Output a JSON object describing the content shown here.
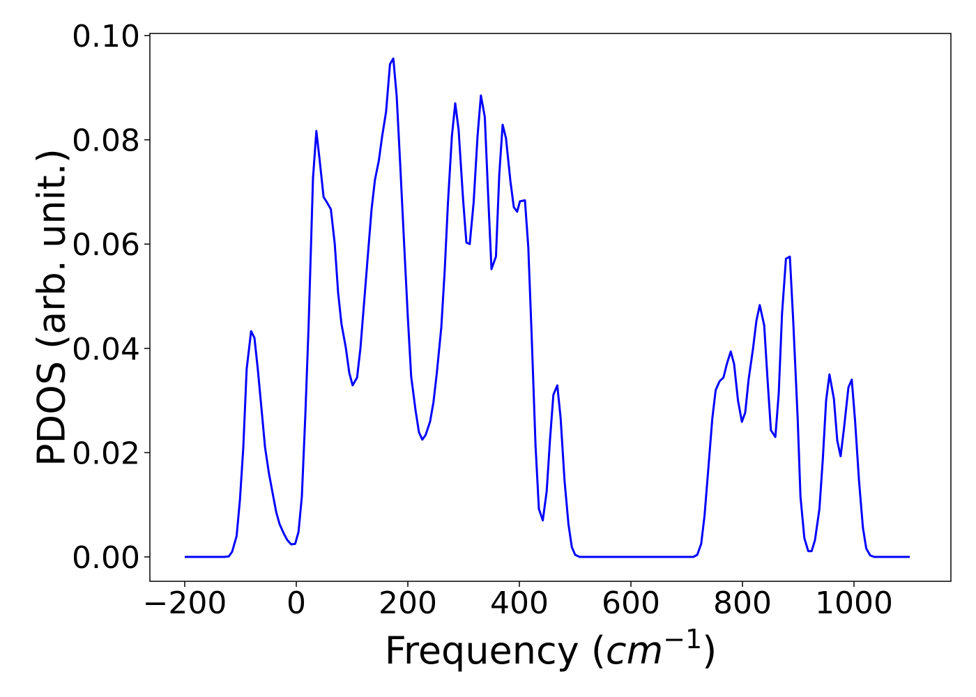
{
  "chart_data": {
    "type": "line",
    "ylabel": "PDOS (arb. unit.)",
    "xlabel_parts": [
      "Frequency (",
      "cm",
      "−1",
      ")"
    ],
    "x": [
      -200,
      -129,
      -121,
      -115,
      -107,
      -101,
      -95,
      -89,
      -81,
      -75,
      -69,
      -62,
      -56,
      -49,
      -42,
      -36,
      -30,
      -22,
      -16,
      -9,
      -2,
      4,
      10,
      16,
      22,
      30,
      36,
      42,
      49,
      55,
      62,
      69,
      75,
      81,
      89,
      95,
      101,
      109,
      115,
      121,
      128,
      135,
      141,
      148,
      154,
      161,
      168,
      174,
      180,
      186,
      194,
      200,
      206,
      214,
      220,
      226,
      232,
      240,
      246,
      252,
      260,
      266,
      272,
      279,
      285,
      291,
      299,
      305,
      311,
      318,
      325,
      331,
      338,
      344,
      350,
      358,
      364,
      370,
      376,
      384,
      390,
      396,
      401,
      410,
      416,
      422,
      429,
      435,
      442,
      449,
      455,
      461,
      468,
      474,
      481,
      488,
      494,
      500,
      508,
      712,
      719,
      726,
      732,
      739,
      746,
      752,
      759,
      766,
      772,
      779,
      785,
      792,
      799,
      805,
      811,
      819,
      825,
      831,
      839,
      845,
      851,
      859,
      865,
      871,
      878,
      885,
      891,
      899,
      904,
      911,
      918,
      924,
      930,
      938,
      944,
      950,
      956,
      964,
      970,
      976,
      982,
      990,
      996,
      1002,
      1009,
      1016,
      1022,
      1029,
      1036,
      1100
    ],
    "series": [
      {
        "name": "PDOS",
        "color": "#0000ff",
        "values": [
          0,
          0,
          0.0001,
          0.001,
          0.004,
          0.011,
          0.021,
          0.036,
          0.0433,
          0.042,
          0.036,
          0.028,
          0.021,
          0.016,
          0.012,
          0.0086,
          0.0063,
          0.0044,
          0.0032,
          0.0024,
          0.0025,
          0.0048,
          0.0116,
          0.0266,
          0.044,
          0.0727,
          0.0817,
          0.076,
          0.069,
          0.068,
          0.0667,
          0.06,
          0.0507,
          0.0447,
          0.04,
          0.0353,
          0.0329,
          0.0344,
          0.04,
          0.048,
          0.0574,
          0.0667,
          0.0723,
          0.076,
          0.0807,
          0.0854,
          0.0945,
          0.0956,
          0.0884,
          0.076,
          0.0587,
          0.046,
          0.0346,
          0.028,
          0.0239,
          0.0225,
          0.0234,
          0.026,
          0.0297,
          0.0353,
          0.044,
          0.0547,
          0.068,
          0.0807,
          0.087,
          0.082,
          0.0687,
          0.0603,
          0.06,
          0.068,
          0.0807,
          0.0885,
          0.0844,
          0.0694,
          0.0552,
          0.0576,
          0.0734,
          0.0829,
          0.0803,
          0.072,
          0.0671,
          0.0662,
          0.0682,
          0.0684,
          0.0594,
          0.0426,
          0.0213,
          0.0092,
          0.007,
          0.0126,
          0.0226,
          0.0311,
          0.0329,
          0.0266,
          0.0146,
          0.0063,
          0.0019,
          0.0004,
          0,
          0,
          0.0004,
          0.0025,
          0.0079,
          0.0172,
          0.0266,
          0.032,
          0.0337,
          0.0344,
          0.037,
          0.0394,
          0.037,
          0.03,
          0.0259,
          0.0277,
          0.034,
          0.04,
          0.0453,
          0.0483,
          0.0444,
          0.034,
          0.0243,
          0.023,
          0.0313,
          0.0467,
          0.0572,
          0.0576,
          0.0453,
          0.0266,
          0.0116,
          0.0036,
          0.0011,
          0.0011,
          0.0032,
          0.0092,
          0.0186,
          0.03,
          0.035,
          0.0303,
          0.0223,
          0.0193,
          0.0246,
          0.0325,
          0.034,
          0.026,
          0.0146,
          0.0056,
          0.0016,
          0.0003,
          0,
          0
        ]
      }
    ],
    "xlim": [
      -262.5,
      1173.75
    ],
    "ylim": [
      -0.00468,
      0.1004
    ],
    "xticks": [
      {
        "value": -200,
        "label": "−200"
      },
      0,
      200,
      400,
      600,
      800,
      1000
    ],
    "yticks": [
      {
        "value": 0,
        "label": "0.00"
      },
      {
        "value": 0.02,
        "label": "0.02"
      },
      {
        "value": 0.04,
        "label": "0.04"
      },
      {
        "value": 0.06,
        "label": "0.06"
      },
      {
        "value": 0.08,
        "label": "0.08"
      },
      {
        "value": 0.1,
        "label": "0.10"
      }
    ],
    "grid": false
  }
}
